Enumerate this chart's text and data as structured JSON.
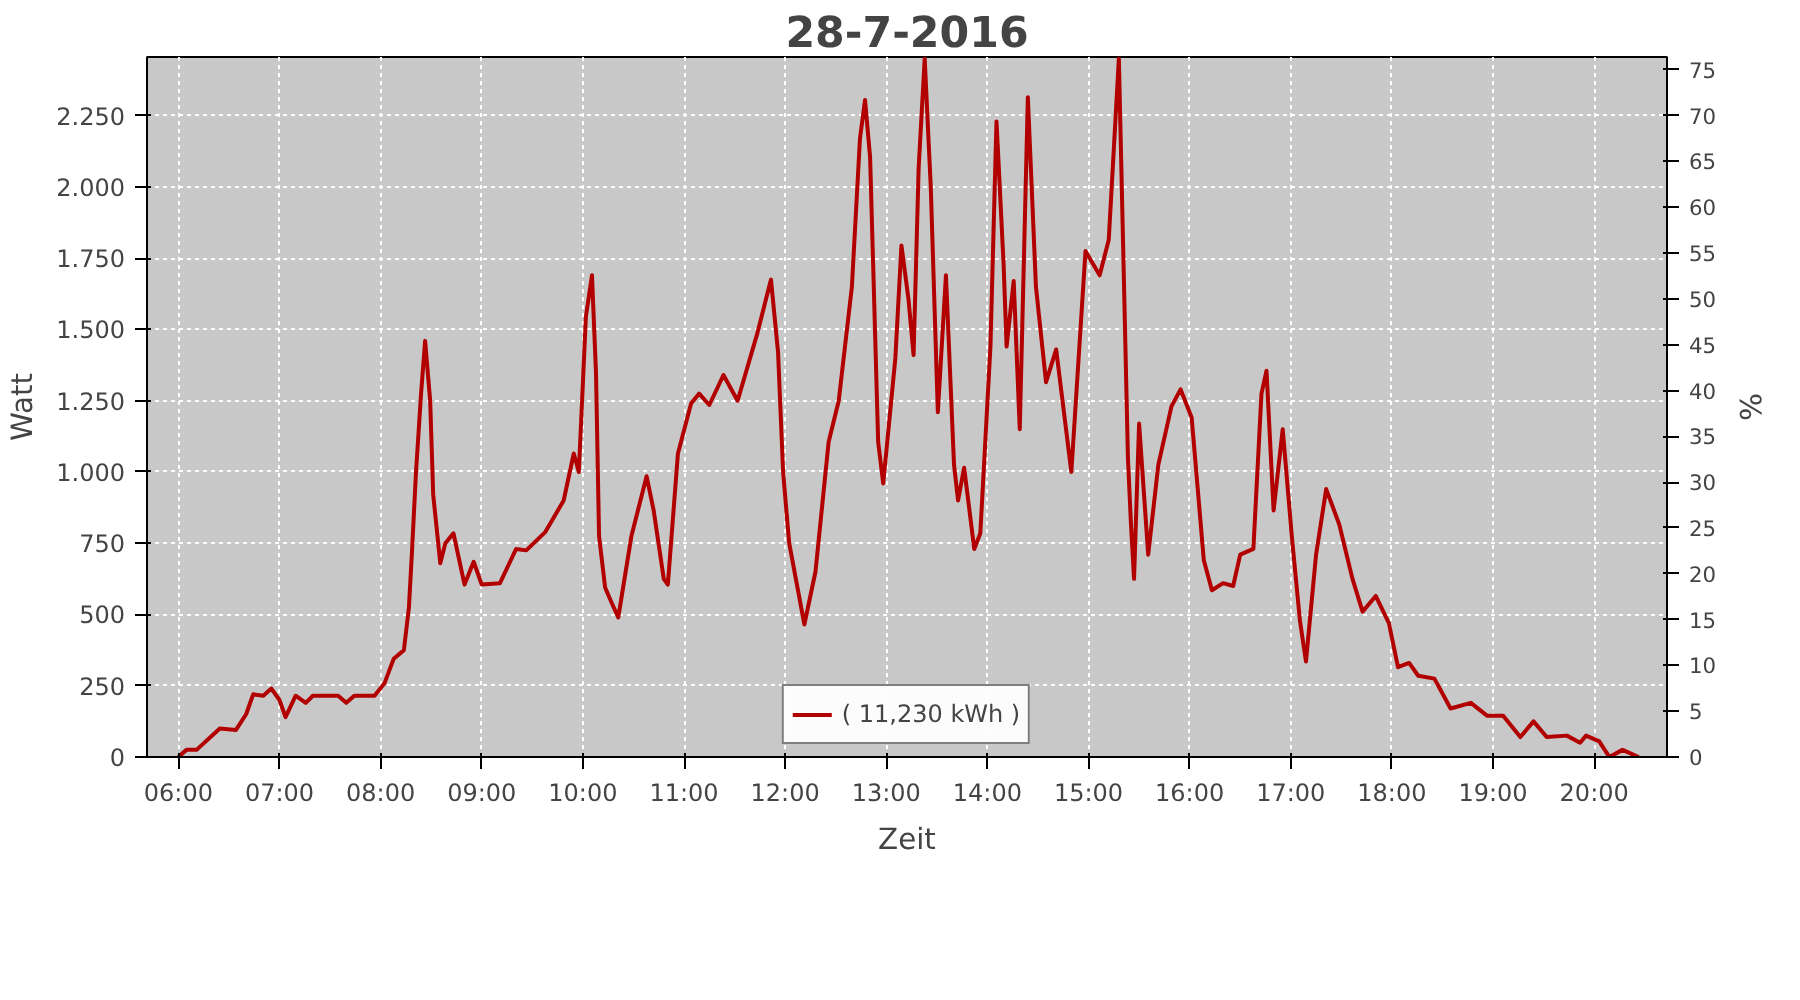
{
  "chart_data": {
    "type": "line",
    "title": "28-7-2016",
    "xlabel": "Zeit",
    "ylabel": "Watt",
    "y2label": "%",
    "xlim": [
      5.69,
      20.72
    ],
    "xticks": [
      {
        "value": 6,
        "label": "06:00"
      },
      {
        "value": 7,
        "label": "07:00"
      },
      {
        "value": 8,
        "label": "08:00"
      },
      {
        "value": 9,
        "label": "09:00"
      },
      {
        "value": 10,
        "label": "10:00"
      },
      {
        "value": 11,
        "label": "11:00"
      },
      {
        "value": 12,
        "label": "12:00"
      },
      {
        "value": 13,
        "label": "13:00"
      },
      {
        "value": 14,
        "label": "14:00"
      },
      {
        "value": 15,
        "label": "15:00"
      },
      {
        "value": 16,
        "label": "16:00"
      },
      {
        "value": 17,
        "label": "17:00"
      },
      {
        "value": 18,
        "label": "18:00"
      },
      {
        "value": 19,
        "label": "19:00"
      },
      {
        "value": 20,
        "label": "20:00"
      }
    ],
    "ylim": [
      0,
      2456
    ],
    "yticks": [
      0,
      250,
      500,
      750,
      {
        "value": 1000,
        "label": "1.000"
      },
      {
        "value": 1250,
        "label": "1.250"
      },
      {
        "value": 1500,
        "label": "1.500"
      },
      {
        "value": 1750,
        "label": "1.750"
      },
      {
        "value": 2000,
        "label": "2.000"
      },
      {
        "value": 2250,
        "label": "2.250"
      }
    ],
    "y2lim": [
      0,
      76.4
    ],
    "y2ticks": [
      0,
      5,
      10,
      15,
      20,
      25,
      30,
      35,
      40,
      45,
      50,
      55,
      60,
      65,
      70,
      75
    ],
    "grid": true,
    "legend": "bottom",
    "line_style": "solid",
    "series": [
      {
        "name": "( 11,230 kWh )",
        "color": "#b20000",
        "x": [
          6.0,
          6.08,
          6.18,
          6.41,
          6.57,
          6.67,
          6.74,
          6.84,
          6.92,
          7.0,
          7.06,
          7.16,
          7.26,
          7.33,
          7.58,
          7.66,
          7.74,
          7.94,
          8.04,
          8.13,
          8.23,
          8.28,
          8.31,
          8.35,
          8.4,
          8.44,
          8.49,
          8.52,
          8.59,
          8.64,
          8.72,
          8.83,
          8.92,
          9.0,
          9.18,
          9.34,
          9.44,
          9.63,
          9.81,
          9.91,
          9.96,
          10.03,
          10.09,
          10.13,
          10.16,
          10.22,
          10.28,
          10.35,
          10.48,
          10.63,
          10.7,
          10.8,
          10.84,
          10.94,
          11.07,
          11.15,
          11.25,
          11.39,
          11.53,
          11.72,
          11.86,
          11.93,
          11.98,
          12.04,
          12.19,
          12.3,
          12.43,
          12.53,
          12.66,
          12.74,
          12.79,
          12.84,
          12.92,
          12.97,
          13.09,
          13.15,
          13.22,
          13.27,
          13.32,
          13.38,
          13.44,
          13.51,
          13.59,
          13.67,
          13.71,
          13.77,
          13.87,
          13.93,
          14.03,
          14.09,
          14.16,
          14.19,
          14.26,
          14.32,
          14.4,
          14.48,
          14.58,
          14.68,
          14.83,
          14.97,
          15.11,
          15.2,
          15.3,
          15.39,
          15.42,
          15.45,
          15.5,
          15.59,
          15.69,
          15.82,
          15.91,
          16.02,
          16.14,
          16.22,
          16.33,
          16.43,
          16.5,
          16.63,
          16.71,
          16.76,
          16.83,
          16.92,
          17.01,
          17.09,
          17.15,
          17.25,
          17.35,
          17.48,
          17.61,
          17.71,
          17.84,
          17.97,
          18.06,
          18.17,
          18.26,
          18.42,
          18.58,
          18.78,
          18.94,
          19.1,
          19.27,
          19.4,
          19.53,
          19.73,
          19.86,
          19.92,
          20.05,
          20.15,
          20.28,
          20.44
        ],
        "values": [
          0,
          25,
          25,
          100,
          95,
          150,
          220,
          215,
          240,
          200,
          140,
          215,
          190,
          215,
          215,
          190,
          215,
          215,
          260,
          345,
          375,
          525,
          720,
          1000,
          1275,
          1460,
          1250,
          920,
          680,
          750,
          785,
          605,
          685,
          605,
          610,
          730,
          725,
          790,
          900,
          1065,
          1000,
          1545,
          1690,
          1345,
          775,
          595,
          545,
          490,
          775,
          985,
          865,
          625,
          605,
          1065,
          1240,
          1275,
          1235,
          1340,
          1250,
          1480,
          1675,
          1420,
          1000,
          750,
          465,
          650,
          1105,
          1250,
          1650,
          2170,
          2305,
          2105,
          1105,
          960,
          1400,
          1795,
          1605,
          1410,
          2065,
          2450,
          2000,
          1210,
          1690,
          1025,
          900,
          1015,
          730,
          785,
          1440,
          2230,
          1730,
          1440,
          1670,
          1150,
          2315,
          1650,
          1315,
          1430,
          1000,
          1775,
          1690,
          1815,
          2450,
          1045,
          815,
          625,
          1170,
          710,
          1025,
          1230,
          1290,
          1190,
          690,
          585,
          610,
          600,
          710,
          730,
          1275,
          1355,
          865,
          1150,
          775,
          480,
          335,
          710,
          940,
          815,
          625,
          510,
          565,
          470,
          315,
          330,
          285,
          275,
          170,
          190,
          145,
          145,
          70,
          125,
          70,
          75,
          50,
          75,
          55,
          0,
          25,
          0
        ]
      }
    ]
  }
}
